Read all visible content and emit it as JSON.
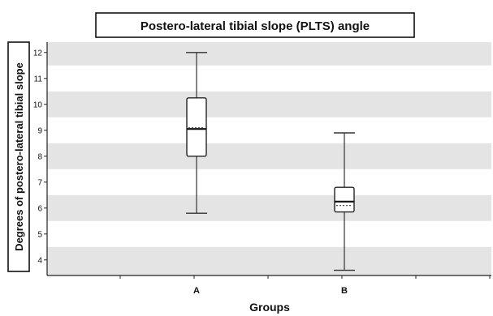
{
  "chart_data": {
    "type": "box",
    "title": "Postero-lateral tibial slope (PLTS) angle",
    "xlabel": "Groups",
    "ylabel": "Degrees of postero-lateral tibial slope",
    "ylim": [
      3.4,
      12.4
    ],
    "yticks": [
      4,
      5,
      6,
      7,
      8,
      9,
      10,
      11,
      12
    ],
    "categories": [
      "A",
      "B"
    ],
    "grid": "alternating horizontal bands",
    "band_color": "#e4e4e4",
    "boxes": [
      {
        "category": "A",
        "min": 5.8,
        "q1": 8.0,
        "median": 9.05,
        "mean": 9.1,
        "q3": 10.25,
        "max": 12.0
      },
      {
        "category": "B",
        "min": 3.6,
        "q1": 5.85,
        "median": 6.25,
        "mean": 6.1,
        "q3": 6.8,
        "max": 8.9
      }
    ]
  }
}
